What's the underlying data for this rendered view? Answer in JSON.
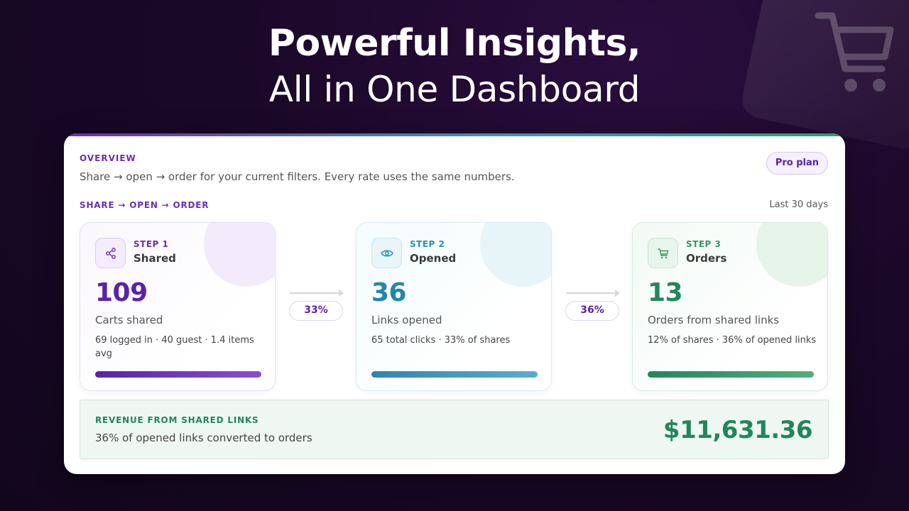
{
  "hero": {
    "title_line1": "Powerful Insights,",
    "title_line2": "All in One Dashboard"
  },
  "overview": {
    "label": "OVERVIEW",
    "subtitle": "Share → open → order for your current filters. Every rate uses the same numbers.",
    "plan_badge": "Pro plan"
  },
  "funnel": {
    "label": "SHARE → OPEN → ORDER",
    "range": "Last 30 days",
    "steps": [
      {
        "step": "STEP 1",
        "name": "Shared",
        "value": "109",
        "label": "Carts shared",
        "detail": "69 logged in · 40 guest · 1.4 items avg",
        "icon": "share-icon",
        "color": "#5a22a8"
      },
      {
        "step": "STEP 2",
        "name": "Opened",
        "value": "36",
        "label": "Links opened",
        "detail": "65 total clicks · 33% of shares",
        "icon": "eye-icon",
        "color": "#2686a8"
      },
      {
        "step": "STEP 3",
        "name": "Orders",
        "value": "13",
        "label": "Orders from shared links",
        "detail": "12% of shares · 36% of opened links",
        "icon": "cart-icon",
        "color": "#23865a"
      }
    ],
    "rates": [
      "33%",
      "36%"
    ]
  },
  "revenue": {
    "label": "REVENUE FROM SHARED LINKS",
    "subtitle": "36% of opened links converted to orders",
    "amount": "$11,631.36"
  }
}
